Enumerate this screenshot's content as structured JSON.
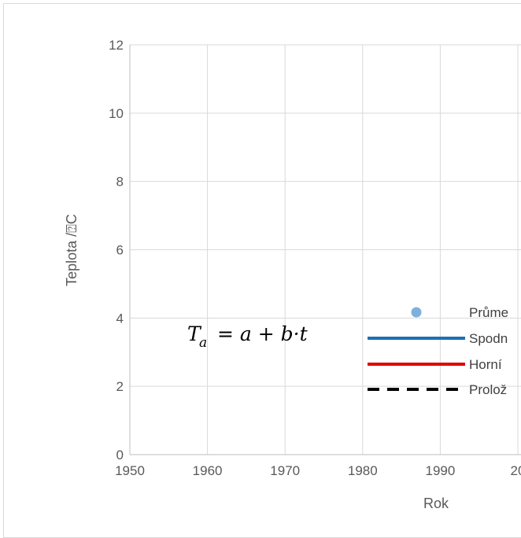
{
  "chart_data": {
    "type": "scatter",
    "title": "",
    "xlabel": "Rok",
    "ylabel": "Teplota /⍰C",
    "xlim": [
      1950,
      2000
    ],
    "ylim": [
      0,
      12
    ],
    "x_ticks": [
      "1950",
      "1960",
      "1970",
      "1980",
      "1990",
      "20"
    ],
    "y_ticks": [
      "0",
      "2",
      "4",
      "6",
      "8",
      "10",
      "12"
    ],
    "grid": true,
    "legend_position": "right",
    "series": [
      {
        "name": "Průme",
        "kind": "markers",
        "color": "#7eb0dc",
        "x": [],
        "y": []
      },
      {
        "name": "Spodn",
        "kind": "line",
        "color": "#1f6fb4",
        "x": [],
        "y": []
      },
      {
        "name": "Horní",
        "kind": "line",
        "color": "#e00000",
        "x": [],
        "y": []
      },
      {
        "name": "Prolož",
        "kind": "dashed-line",
        "color": "#000000",
        "x": [],
        "y": []
      }
    ],
    "annotation": {
      "lhs": "T",
      "lhs_subscript": "a",
      "rhs": "= a + b·t"
    }
  }
}
